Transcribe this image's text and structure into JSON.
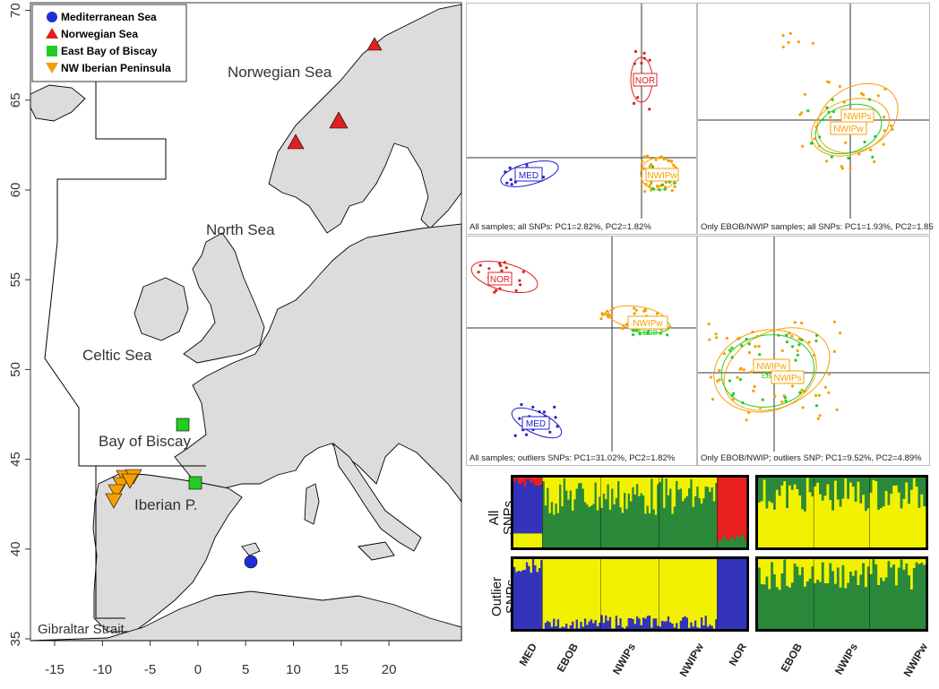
{
  "map": {
    "x_ticks": [
      "-15",
      "-10",
      "-5",
      "0",
      "5",
      "10",
      "15",
      "20"
    ],
    "y_ticks": [
      "35",
      "40",
      "45",
      "50",
      "55",
      "60",
      "65",
      "70"
    ],
    "legend": [
      {
        "label": "Mediterranean Sea",
        "symbol": "circle",
        "color": "#1f2fd6"
      },
      {
        "label": "Norwegian Sea",
        "symbol": "triangle-up",
        "color": "#e02020"
      },
      {
        "label": "East Bay of Biscay",
        "symbol": "square",
        "color": "#22cc22"
      },
      {
        "label": "NW Iberian Peninsula",
        "symbol": "triangle-down",
        "color": "#f5a000"
      }
    ],
    "labels": {
      "norwegian_sea": "Norwegian Sea",
      "north_sea": "North Sea",
      "celtic_sea": "Celtic Sea",
      "bay_of_biscay": "Bay of Biscay",
      "iberian": "Iberian P.",
      "gibraltar": "Gibraltar Strait"
    }
  },
  "pca": [
    {
      "caption": "All samples; all SNPs: PC1=2.82%, PC2=1.82%",
      "groups": [
        "NOR",
        "MED",
        "NWIPw"
      ]
    },
    {
      "caption": "Only EBOB/NWIP samples; all SNPs: PC1=1.93%, PC2=1.85",
      "groups": [
        "NWIPs",
        "NWIPw"
      ]
    },
    {
      "caption": "All samples; outliers SNPs: PC1=31.02%, PC2=1.82%",
      "groups": [
        "NOR",
        "NWIPw",
        "EBOB",
        "MED"
      ]
    },
    {
      "caption": "Only EBOB/NWIP; outliers SNP: PC1=9.52%, PC2=4.89%",
      "groups": [
        "NWIPw",
        "EBOB",
        "NWIPs"
      ]
    }
  ],
  "structure": {
    "row_labels": [
      "All\nSNPs",
      "Outlier\nSNPs"
    ],
    "left_pops": [
      "MED",
      "EBOB",
      "NWIPs",
      "NWIPw",
      "NOR"
    ],
    "right_pops": [
      "EBOB",
      "NWIPs",
      "NWIPw"
    ],
    "colors": {
      "blue": "#3333bb",
      "green": "#2a8a3a",
      "yellow": "#f2f200",
      "red": "#e82020"
    }
  }
}
